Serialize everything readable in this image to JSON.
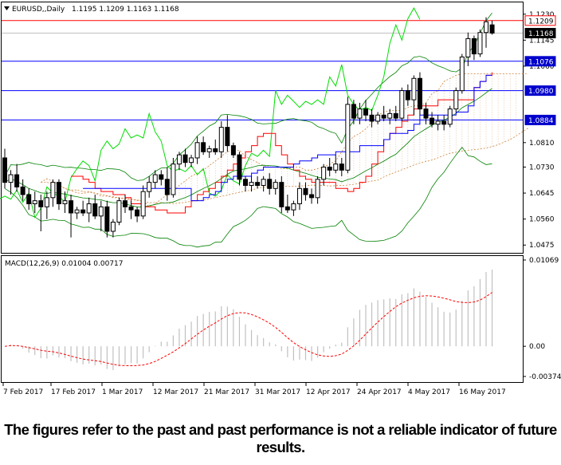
{
  "header": {
    "symbol": "EURUSD,,Daily",
    "ohlc": "1.1195 1.1209 1.1163 1.1168"
  },
  "macd": {
    "label": "MACD(12,26,9) 0.01004 0.00717",
    "ticks": [
      "0.01069",
      "0.00",
      "-0.00374"
    ]
  },
  "price_axis": {
    "ticks": [
      "1.1230",
      "1.1145",
      "1.1060",
      "1.0810",
      "1.0730",
      "1.0645",
      "1.0560",
      "1.0475"
    ],
    "range": [
      1.046,
      1.1245
    ]
  },
  "levels": [
    {
      "value": "1.1209",
      "color": "#ff0000",
      "style": "tag-red"
    },
    {
      "value": "1.1168",
      "color": "#000000",
      "style": "tag-black"
    },
    {
      "value": "1.1076",
      "color": "#0000ff",
      "style": "tag-blue"
    },
    {
      "value": "1.0980",
      "color": "#0000ff",
      "style": "tag-blue"
    },
    {
      "value": "1.0884",
      "color": "#0000ff",
      "style": "tag-blue"
    }
  ],
  "date_labels": [
    "7 Feb 2017",
    "17 Feb 2017",
    "1 Mar 2017",
    "12 Mar 2017",
    "21 Mar 2017",
    "31 Mar 2017",
    "12 Apr 2017",
    "24 Apr 2017",
    "4 May 2017",
    "16 May 2017"
  ],
  "disclaimer": "The figures refer to the past and past performance is not a reliable indicator of future results.",
  "colors": {
    "up_candle": "#ffffff",
    "down_candle": "#000000",
    "bollinger": "#008000",
    "chikou": "#00dd00",
    "tenkan": "#ff0000",
    "kijun": "#0000ff",
    "kumo": "#cd853f",
    "macd_hist": "#c0c0c0",
    "macd_signal": "#ff0000"
  },
  "chart_data": {
    "type": "candlestick",
    "title": "EURUSD,,Daily",
    "timeframe": "Daily",
    "ohlc_last": {
      "open": 1.1195,
      "high": 1.1209,
      "low": 1.1163,
      "close": 1.1168
    },
    "ylim": [
      1.046,
      1.1245
    ],
    "candles": [
      {
        "o": 1.076,
        "h": 1.079,
        "l": 1.066,
        "c": 1.068
      },
      {
        "o": 1.068,
        "h": 1.072,
        "l": 1.064,
        "c": 1.0705
      },
      {
        "o": 1.0705,
        "h": 1.074,
        "l": 1.065,
        "c": 1.0665
      },
      {
        "o": 1.0665,
        "h": 1.069,
        "l": 1.062,
        "c": 1.064
      },
      {
        "o": 1.064,
        "h": 1.066,
        "l": 1.059,
        "c": 1.061
      },
      {
        "o": 1.061,
        "h": 1.065,
        "l": 1.058,
        "c": 1.062
      },
      {
        "o": 1.062,
        "h": 1.064,
        "l": 1.052,
        "c": 1.06
      },
      {
        "o": 1.06,
        "h": 1.065,
        "l": 1.056,
        "c": 1.063
      },
      {
        "o": 1.063,
        "h": 1.069,
        "l": 1.06,
        "c": 1.068
      },
      {
        "o": 1.068,
        "h": 1.069,
        "l": 1.059,
        "c": 1.061
      },
      {
        "o": 1.061,
        "h": 1.065,
        "l": 1.058,
        "c": 1.062
      },
      {
        "o": 1.062,
        "h": 1.064,
        "l": 1.05,
        "c": 1.058
      },
      {
        "o": 1.058,
        "h": 1.06,
        "l": 1.056,
        "c": 1.059
      },
      {
        "o": 1.059,
        "h": 1.062,
        "l": 1.057,
        "c": 1.058
      },
      {
        "o": 1.058,
        "h": 1.063,
        "l": 1.055,
        "c": 1.061
      },
      {
        "o": 1.061,
        "h": 1.064,
        "l": 1.056,
        "c": 1.057
      },
      {
        "o": 1.057,
        "h": 1.062,
        "l": 1.052,
        "c": 1.06
      },
      {
        "o": 1.06,
        "h": 1.062,
        "l": 1.05,
        "c": 1.052
      },
      {
        "o": 1.052,
        "h": 1.056,
        "l": 1.05,
        "c": 1.055
      },
      {
        "o": 1.055,
        "h": 1.063,
        "l": 1.054,
        "c": 1.062
      },
      {
        "o": 1.062,
        "h": 1.064,
        "l": 1.058,
        "c": 1.06
      },
      {
        "o": 1.06,
        "h": 1.062,
        "l": 1.056,
        "c": 1.059
      },
      {
        "o": 1.059,
        "h": 1.06,
        "l": 1.055,
        "c": 1.057
      },
      {
        "o": 1.057,
        "h": 1.067,
        "l": 1.056,
        "c": 1.065
      },
      {
        "o": 1.065,
        "h": 1.07,
        "l": 1.063,
        "c": 1.068
      },
      {
        "o": 1.068,
        "h": 1.072,
        "l": 1.066,
        "c": 1.0705
      },
      {
        "o": 1.0705,
        "h": 1.072,
        "l": 1.067,
        "c": 1.069
      },
      {
        "o": 1.069,
        "h": 1.073,
        "l": 1.062,
        "c": 1.064
      },
      {
        "o": 1.064,
        "h": 1.076,
        "l": 1.063,
        "c": 1.074
      },
      {
        "o": 1.074,
        "h": 1.078,
        "l": 1.072,
        "c": 1.077
      },
      {
        "o": 1.077,
        "h": 1.079,
        "l": 1.073,
        "c": 1.0745
      },
      {
        "o": 1.0745,
        "h": 1.077,
        "l": 1.073,
        "c": 1.076
      },
      {
        "o": 1.076,
        "h": 1.083,
        "l": 1.074,
        "c": 1.081
      },
      {
        "o": 1.081,
        "h": 1.083,
        "l": 1.077,
        "c": 1.078
      },
      {
        "o": 1.078,
        "h": 1.08,
        "l": 1.076,
        "c": 1.079
      },
      {
        "o": 1.079,
        "h": 1.082,
        "l": 1.077,
        "c": 1.078
      },
      {
        "o": 1.078,
        "h": 1.088,
        "l": 1.076,
        "c": 1.086
      },
      {
        "o": 1.086,
        "h": 1.09,
        "l": 1.078,
        "c": 1.08
      },
      {
        "o": 1.08,
        "h": 1.081,
        "l": 1.076,
        "c": 1.077
      },
      {
        "o": 1.077,
        "h": 1.078,
        "l": 1.067,
        "c": 1.069
      },
      {
        "o": 1.069,
        "h": 1.07,
        "l": 1.065,
        "c": 1.067
      },
      {
        "o": 1.067,
        "h": 1.07,
        "l": 1.065,
        "c": 1.068
      },
      {
        "o": 1.068,
        "h": 1.07,
        "l": 1.066,
        "c": 1.067
      },
      {
        "o": 1.067,
        "h": 1.07,
        "l": 1.065,
        "c": 1.069
      },
      {
        "o": 1.069,
        "h": 1.071,
        "l": 1.064,
        "c": 1.066
      },
      {
        "o": 1.066,
        "h": 1.069,
        "l": 1.064,
        "c": 1.068
      },
      {
        "o": 1.068,
        "h": 1.07,
        "l": 1.058,
        "c": 1.06
      },
      {
        "o": 1.06,
        "h": 1.064,
        "l": 1.058,
        "c": 1.059
      },
      {
        "o": 1.059,
        "h": 1.062,
        "l": 1.057,
        "c": 1.061
      },
      {
        "o": 1.061,
        "h": 1.068,
        "l": 1.059,
        "c": 1.066
      },
      {
        "o": 1.066,
        "h": 1.068,
        "l": 1.062,
        "c": 1.064
      },
      {
        "o": 1.064,
        "h": 1.066,
        "l": 1.061,
        "c": 1.063
      },
      {
        "o": 1.063,
        "h": 1.07,
        "l": 1.061,
        "c": 1.069
      },
      {
        "o": 1.069,
        "h": 1.074,
        "l": 1.067,
        "c": 1.073
      },
      {
        "o": 1.073,
        "h": 1.076,
        "l": 1.07,
        "c": 1.072
      },
      {
        "o": 1.072,
        "h": 1.077,
        "l": 1.071,
        "c": 1.074
      },
      {
        "o": 1.074,
        "h": 1.076,
        "l": 1.07,
        "c": 1.072
      },
      {
        "o": 1.072,
        "h": 1.096,
        "l": 1.071,
        "c": 1.0935
      },
      {
        "o": 1.0935,
        "h": 1.095,
        "l": 1.087,
        "c": 1.089
      },
      {
        "o": 1.089,
        "h": 1.094,
        "l": 1.087,
        "c": 1.092
      },
      {
        "o": 1.092,
        "h": 1.095,
        "l": 1.088,
        "c": 1.09
      },
      {
        "o": 1.09,
        "h": 1.092,
        "l": 1.086,
        "c": 1.088
      },
      {
        "o": 1.088,
        "h": 1.091,
        "l": 1.087,
        "c": 1.09
      },
      {
        "o": 1.09,
        "h": 1.093,
        "l": 1.088,
        "c": 1.089
      },
      {
        "o": 1.089,
        "h": 1.092,
        "l": 1.087,
        "c": 1.0905
      },
      {
        "o": 1.0905,
        "h": 1.093,
        "l": 1.088,
        "c": 1.089
      },
      {
        "o": 1.089,
        "h": 1.099,
        "l": 1.088,
        "c": 1.098
      },
      {
        "o": 1.098,
        "h": 1.1,
        "l": 1.093,
        "c": 1.095
      },
      {
        "o": 1.095,
        "h": 1.103,
        "l": 1.09,
        "c": 1.102
      },
      {
        "o": 1.102,
        "h": 1.104,
        "l": 1.09,
        "c": 1.092
      },
      {
        "o": 1.092,
        "h": 1.094,
        "l": 1.087,
        "c": 1.089
      },
      {
        "o": 1.089,
        "h": 1.091,
        "l": 1.086,
        "c": 1.087
      },
      {
        "o": 1.087,
        "h": 1.09,
        "l": 1.085,
        "c": 1.088
      },
      {
        "o": 1.088,
        "h": 1.09,
        "l": 1.085,
        "c": 1.087
      },
      {
        "o": 1.087,
        "h": 1.093,
        "l": 1.086,
        "c": 1.092
      },
      {
        "o": 1.092,
        "h": 1.099,
        "l": 1.091,
        "c": 1.098
      },
      {
        "o": 1.098,
        "h": 1.11,
        "l": 1.097,
        "c": 1.109
      },
      {
        "o": 1.109,
        "h": 1.117,
        "l": 1.106,
        "c": 1.115
      },
      {
        "o": 1.115,
        "h": 1.116,
        "l": 1.108,
        "c": 1.11
      },
      {
        "o": 1.11,
        "h": 1.118,
        "l": 1.109,
        "c": 1.117
      },
      {
        "o": 1.117,
        "h": 1.122,
        "l": 1.112,
        "c": 1.1205
      },
      {
        "o": 1.1195,
        "h": 1.1209,
        "l": 1.1163,
        "c": 1.1168
      }
    ],
    "tenkan": [
      1.07,
      1.07,
      1.069,
      1.068,
      1.066,
      1.065,
      1.065,
      1.064,
      1.064,
      1.063,
      1.061,
      1.061,
      1.06,
      1.06,
      1.059,
      1.059,
      1.058,
      1.058,
      1.058,
      1.06,
      1.062,
      1.064,
      1.065,
      1.066,
      1.068,
      1.07,
      1.072,
      1.074,
      1.076,
      1.078,
      1.08,
      1.083,
      1.084,
      1.084,
      1.08,
      1.077,
      1.074,
      1.072,
      1.07,
      1.069,
      1.068,
      1.068,
      1.068,
      1.068,
      1.066,
      1.066,
      1.065,
      1.066,
      1.068,
      1.07,
      1.074,
      1.078,
      1.082,
      1.084,
      1.086,
      1.088,
      1.09,
      1.092,
      1.093,
      1.093,
      1.093,
      1.095,
      1.095,
      1.095,
      1.095,
      1.095,
      1.095,
      1.099,
      1.101,
      1.103,
      1.104
    ],
    "kijun": [
      1.066,
      1.066,
      1.066,
      1.066,
      1.066,
      1.066,
      1.066,
      1.066,
      1.066,
      1.066,
      1.066,
      1.066,
      1.066,
      1.066,
      1.066,
      1.066,
      1.066,
      1.066,
      1.062,
      1.062,
      1.063,
      1.064,
      1.065,
      1.068,
      1.069,
      1.07,
      1.07,
      1.07,
      1.071,
      1.072,
      1.073,
      1.073,
      1.073,
      1.073,
      1.073,
      1.074,
      1.075,
      1.075,
      1.076,
      1.077,
      1.077,
      1.077,
      1.078,
      1.078,
      1.078,
      1.078,
      1.08,
      1.08,
      1.08,
      1.08,
      1.082,
      1.084,
      1.084,
      1.084,
      1.085,
      1.087,
      1.09,
      1.09,
      1.09,
      1.09,
      1.09,
      1.09,
      1.091,
      1.091,
      1.093,
      1.099,
      1.101,
      1.103,
      1.103
    ]
  }
}
